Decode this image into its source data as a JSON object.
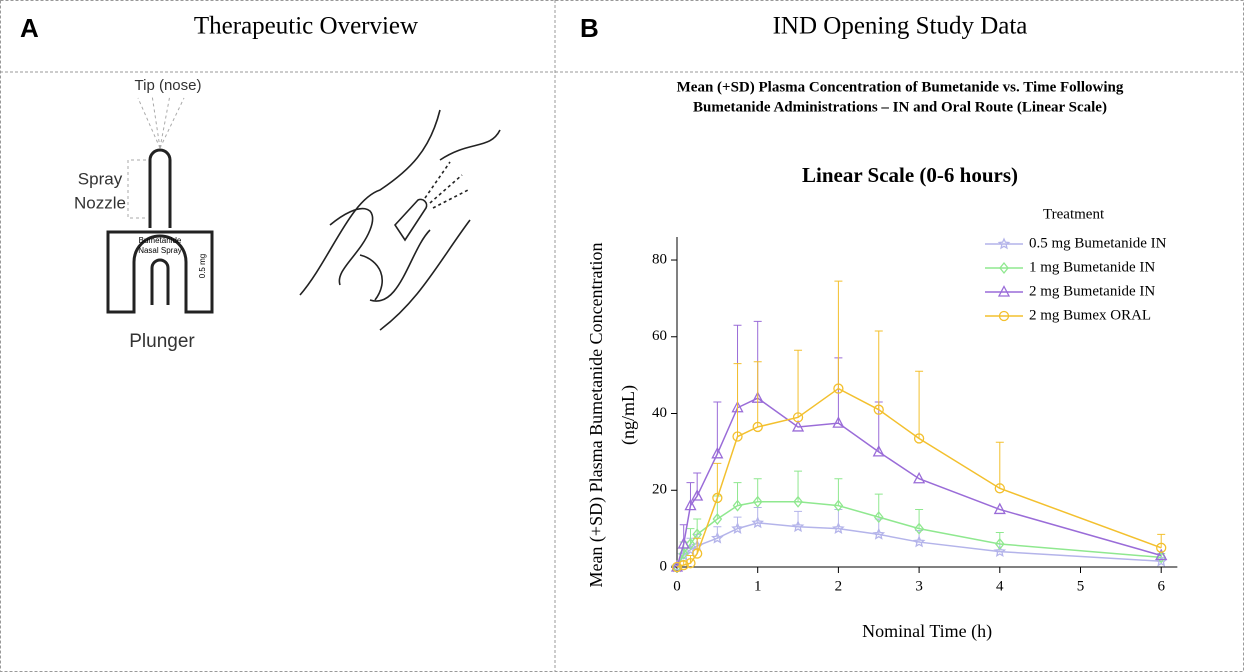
{
  "panels": [
    {
      "letter": "A",
      "title": "Therapeutic Overview",
      "labels": {
        "tip": "Tip (nose)",
        "nozzle": [
          "Spray",
          "Nozzle"
        ],
        "device": [
          "Bumetanide",
          "Nasal Spray"
        ],
        "dose": "0.5 mg",
        "plunger": "Plunger"
      }
    },
    {
      "letter": "B",
      "title": "IND Opening Study Data"
    }
  ],
  "chart_data": {
    "type": "line",
    "title": [
      "Mean (+SD) Plasma Concentration of Bumetanide vs. Time Following",
      "Bumetanide Administrations – IN and Oral Route (Linear Scale)"
    ],
    "subtitle": "Linear Scale (0-6 hours)",
    "xlabel": "Nominal Time (h)",
    "ylabel": [
      "Mean (+SD) Plasma Bumetanide Concentration",
      "(ng/mL)"
    ],
    "legend_title": "Treatment",
    "legend": "upper right",
    "x": [
      0,
      0.083,
      0.167,
      0.25,
      0.5,
      0.75,
      1,
      1.5,
      2,
      2.5,
      3,
      4,
      6
    ],
    "series": [
      {
        "name": "0.5 mg Bumetanide IN",
        "color": "#b4b4ea",
        "marker": "star",
        "values": [
          0,
          3,
          4.5,
          5.5,
          7.5,
          10,
          11.5,
          10.5,
          10,
          8.5,
          6.5,
          4,
          1.5
        ],
        "errors": [
          0,
          2,
          3,
          3,
          3,
          3,
          4,
          4,
          5,
          4,
          3,
          2,
          1
        ]
      },
      {
        "name": "1 mg Bumetanide IN",
        "color": "#8fe88f",
        "marker": "diamond",
        "values": [
          0,
          3.5,
          6,
          8.5,
          12.5,
          16,
          17,
          17,
          16,
          13,
          10,
          6,
          2.5
        ],
        "errors": [
          0,
          3,
          4,
          4,
          6,
          6,
          6,
          8,
          7,
          6,
          5,
          3,
          1
        ]
      },
      {
        "name": "2 mg Bumetanide IN",
        "color": "#9a6cd8",
        "marker": "triangle",
        "values": [
          0,
          6,
          16,
          18.5,
          29.5,
          41.5,
          44,
          36.5,
          37.5,
          30,
          23,
          15,
          3
        ],
        "errors": [
          0,
          5,
          6,
          6,
          13.5,
          21.5,
          20,
          0,
          17,
          13,
          0,
          0,
          0
        ]
      },
      {
        "name": "2 mg Bumex ORAL",
        "color": "#f3c02e",
        "marker": "circle",
        "values": [
          0,
          0.5,
          1,
          3.5,
          18,
          34,
          36.5,
          39,
          46.5,
          41,
          33.5,
          20.5,
          5
        ],
        "errors": [
          0,
          1,
          2,
          4,
          9,
          19,
          17,
          17.5,
          28,
          20.5,
          17.5,
          12,
          3.5
        ]
      }
    ],
    "xlim": [
      0,
      6.2
    ],
    "xticks": [
      0,
      1,
      2,
      3,
      4,
      5,
      6
    ],
    "ylim": [
      0,
      86
    ],
    "yticks": [
      0,
      20,
      40,
      60,
      80
    ]
  }
}
